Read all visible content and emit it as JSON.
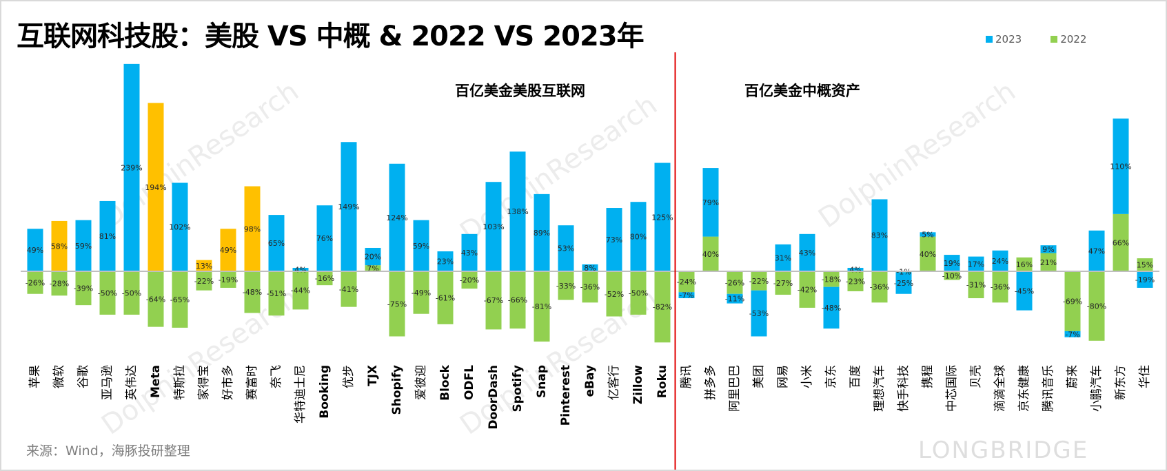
{
  "title": "互联网科技股：美股 VS 中概 & 2022 VS 2023年",
  "section_labels": {
    "us": "百亿美金美股互联网",
    "china": "百亿美金中概资产"
  },
  "source": "来源：Wind，海豚投研整理",
  "watermarks": {
    "research": "DolphinResearch",
    "cn": "海豚投研",
    "brand": "LONGBRIDGE"
  },
  "colors": {
    "2023": "#00B0F0",
    "2022": "#92D050",
    "highlight_2023": "#FFC000",
    "divider": "#E00000",
    "axis": "#BFBFBF"
  },
  "chart_data": {
    "type": "bar",
    "stacking": "2022 segment adjacent to axis; 2023 stacked beyond it when same sign",
    "unit": "%",
    "legend": [
      {
        "name": "2023",
        "color": "#00B0F0"
      },
      {
        "name": "2022",
        "color": "#92D050"
      }
    ],
    "legend_position": "top-right",
    "grid": false,
    "categories": [
      "苹果",
      "微软",
      "谷歌",
      "亚马逊",
      "英伟达",
      "Meta",
      "特斯拉",
      "家得宝",
      "好市多",
      "赛富时",
      "奈飞",
      "华特迪士尼",
      "Booking",
      "优步",
      "TJX",
      "Shopify",
      "爱彼迎",
      "Block",
      "ODFL",
      "DoorDash",
      "Spotify",
      "Snap",
      "Pinterest",
      "eBay",
      "亿客行",
      "Zillow",
      "Roku",
      "腾讯",
      "拼多多",
      "阿里巴巴",
      "美团",
      "网易",
      "小米",
      "京东",
      "百度",
      "理想汽车",
      "快手科技",
      "携程",
      "中芯国际",
      "贝壳",
      "滴滴全球",
      "京东健康",
      "腾讯音乐",
      "蔚来",
      "小鹏汽车",
      "新东方",
      "华住"
    ],
    "groups": [
      {
        "name": "百亿美金美股互联网",
        "count": 27
      },
      {
        "name": "百亿美金中概资产",
        "count": 20
      }
    ],
    "highlighted_2023": [
      "微软",
      "Meta",
      "家得宝",
      "好市多",
      "赛富时"
    ],
    "series": [
      {
        "name": "2023",
        "values": [
          49,
          58,
          59,
          81,
          239,
          194,
          102,
          13,
          49,
          98,
          65,
          4,
          76,
          149,
          20,
          124,
          59,
          23,
          43,
          103,
          138,
          89,
          53,
          8,
          73,
          80,
          125,
          -7,
          79,
          -11,
          -53,
          31,
          43,
          -48,
          4,
          83,
          -25,
          5,
          19,
          17,
          24,
          -45,
          9,
          -7,
          47,
          110,
          -19
        ]
      },
      {
        "name": "2022",
        "values": [
          -26,
          -28,
          -39,
          -50,
          -50,
          -64,
          -65,
          -22,
          -19,
          -48,
          -51,
          -44,
          -16,
          -41,
          7,
          -75,
          -49,
          -61,
          -20,
          -67,
          -66,
          -81,
          -33,
          -36,
          -52,
          -50,
          -82,
          -24,
          40,
          -26,
          -22,
          -27,
          -42,
          -18,
          -23,
          -36,
          -1,
          40,
          -10,
          -31,
          -36,
          16,
          21,
          -69,
          -80,
          66,
          15
        ]
      }
    ]
  }
}
